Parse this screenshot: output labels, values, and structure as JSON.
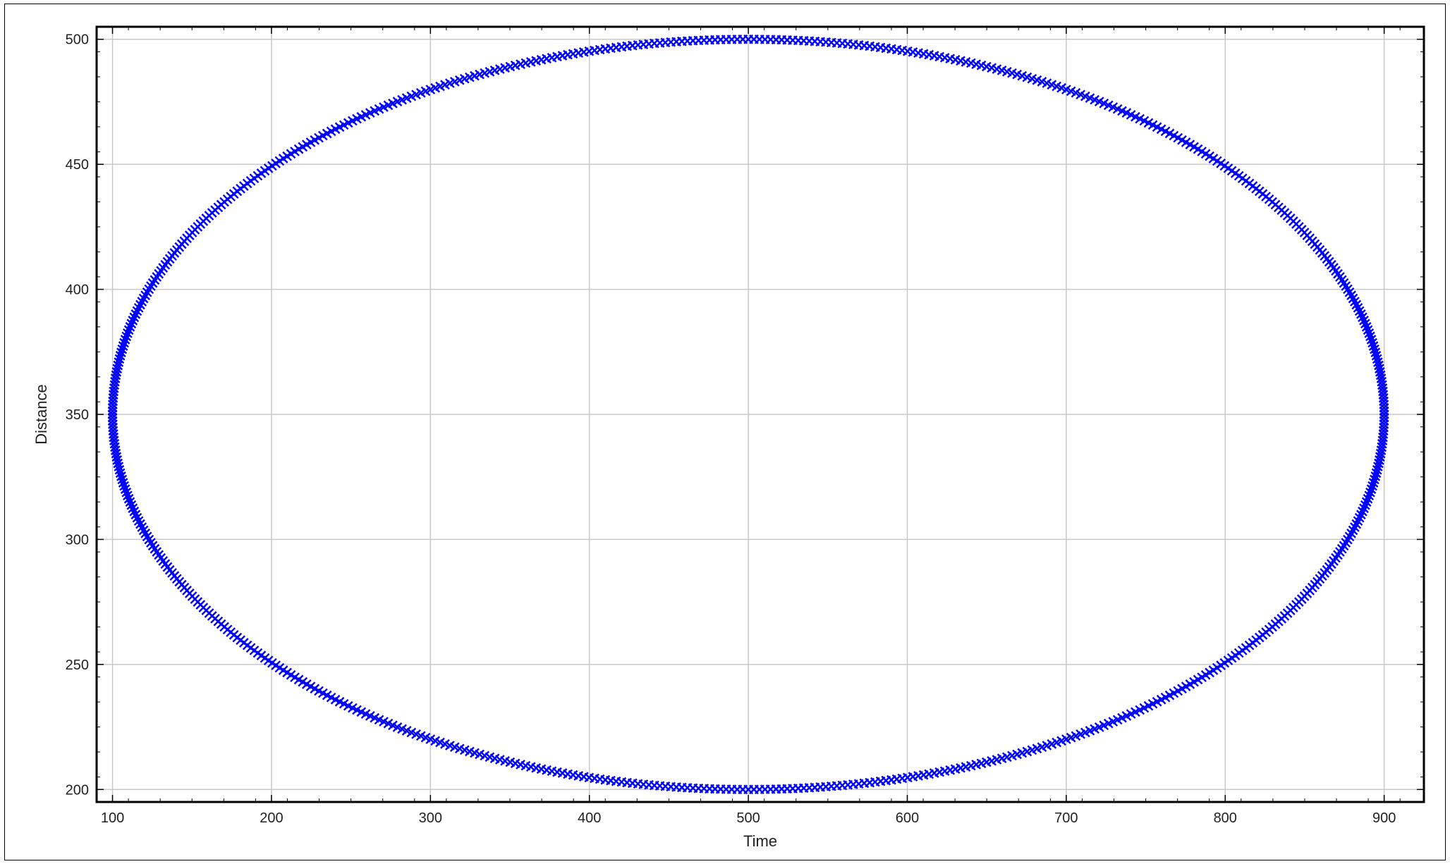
{
  "chart_data": {
    "type": "scatter",
    "xlabel": "Time",
    "ylabel": "Distance",
    "xlim": [
      90,
      925
    ],
    "ylim": [
      195,
      505
    ],
    "xticks": [
      100,
      200,
      300,
      400,
      500,
      600,
      700,
      800,
      900
    ],
    "yticks": [
      200,
      250,
      300,
      350,
      400,
      450,
      500
    ],
    "grid": true,
    "marker": "x",
    "marker_color": "#0000ff",
    "series": [
      {
        "shape": "ellipse",
        "center": [
          500,
          350
        ],
        "radius_x": 400,
        "radius_y": 150,
        "point_count": 720
      }
    ]
  }
}
